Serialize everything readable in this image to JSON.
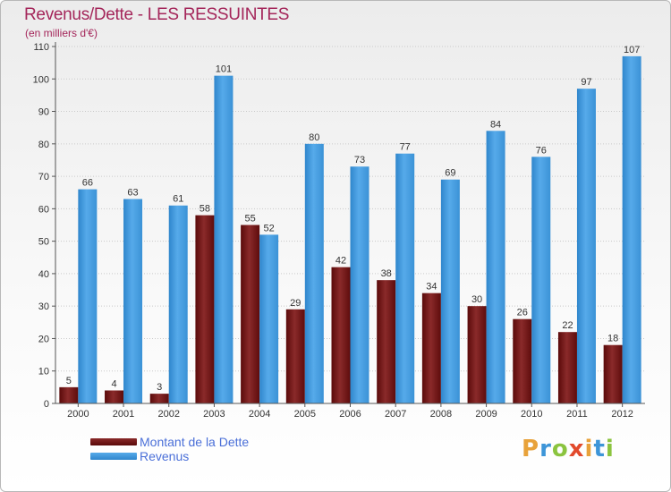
{
  "header": {
    "title": "Revenus/Dette - LES RESSUINTES",
    "subtitle": "(en milliers d'€)"
  },
  "legend": {
    "items": [
      {
        "label": "Montant de la Dette",
        "color": "#6b0f0f"
      },
      {
        "label": "Revenus",
        "color": "#3d95d8"
      }
    ]
  },
  "logo": {
    "text": "Proxiti",
    "colors": [
      "#e8a23a",
      "#3d95d8",
      "#8bc43f",
      "#e24a2c",
      "#e8a23a",
      "#3d95d8",
      "#8bc43f"
    ]
  },
  "chart_data": {
    "type": "bar",
    "title": "Revenus/Dette - LES RESSUINTES",
    "subtitle": "(en milliers d'€)",
    "categories": [
      "2000",
      "2001",
      "2002",
      "2003",
      "2004",
      "2005",
      "2006",
      "2007",
      "2008",
      "2009",
      "2010",
      "2011",
      "2012"
    ],
    "series": [
      {
        "name": "Montant de la Dette",
        "color": "#6b0f0f",
        "values": [
          5,
          4,
          3,
          58,
          55,
          29,
          42,
          38,
          34,
          30,
          26,
          22,
          18
        ]
      },
      {
        "name": "Revenus",
        "color": "#3d95d8",
        "values": [
          66,
          63,
          61,
          101,
          52,
          80,
          73,
          77,
          69,
          84,
          76,
          97,
          107
        ]
      }
    ],
    "ylim": [
      0,
      110
    ],
    "yticks": [
      0,
      10,
      20,
      30,
      40,
      50,
      60,
      70,
      80,
      90,
      100,
      110
    ],
    "grid": true,
    "legend_position": "bottom-left"
  }
}
